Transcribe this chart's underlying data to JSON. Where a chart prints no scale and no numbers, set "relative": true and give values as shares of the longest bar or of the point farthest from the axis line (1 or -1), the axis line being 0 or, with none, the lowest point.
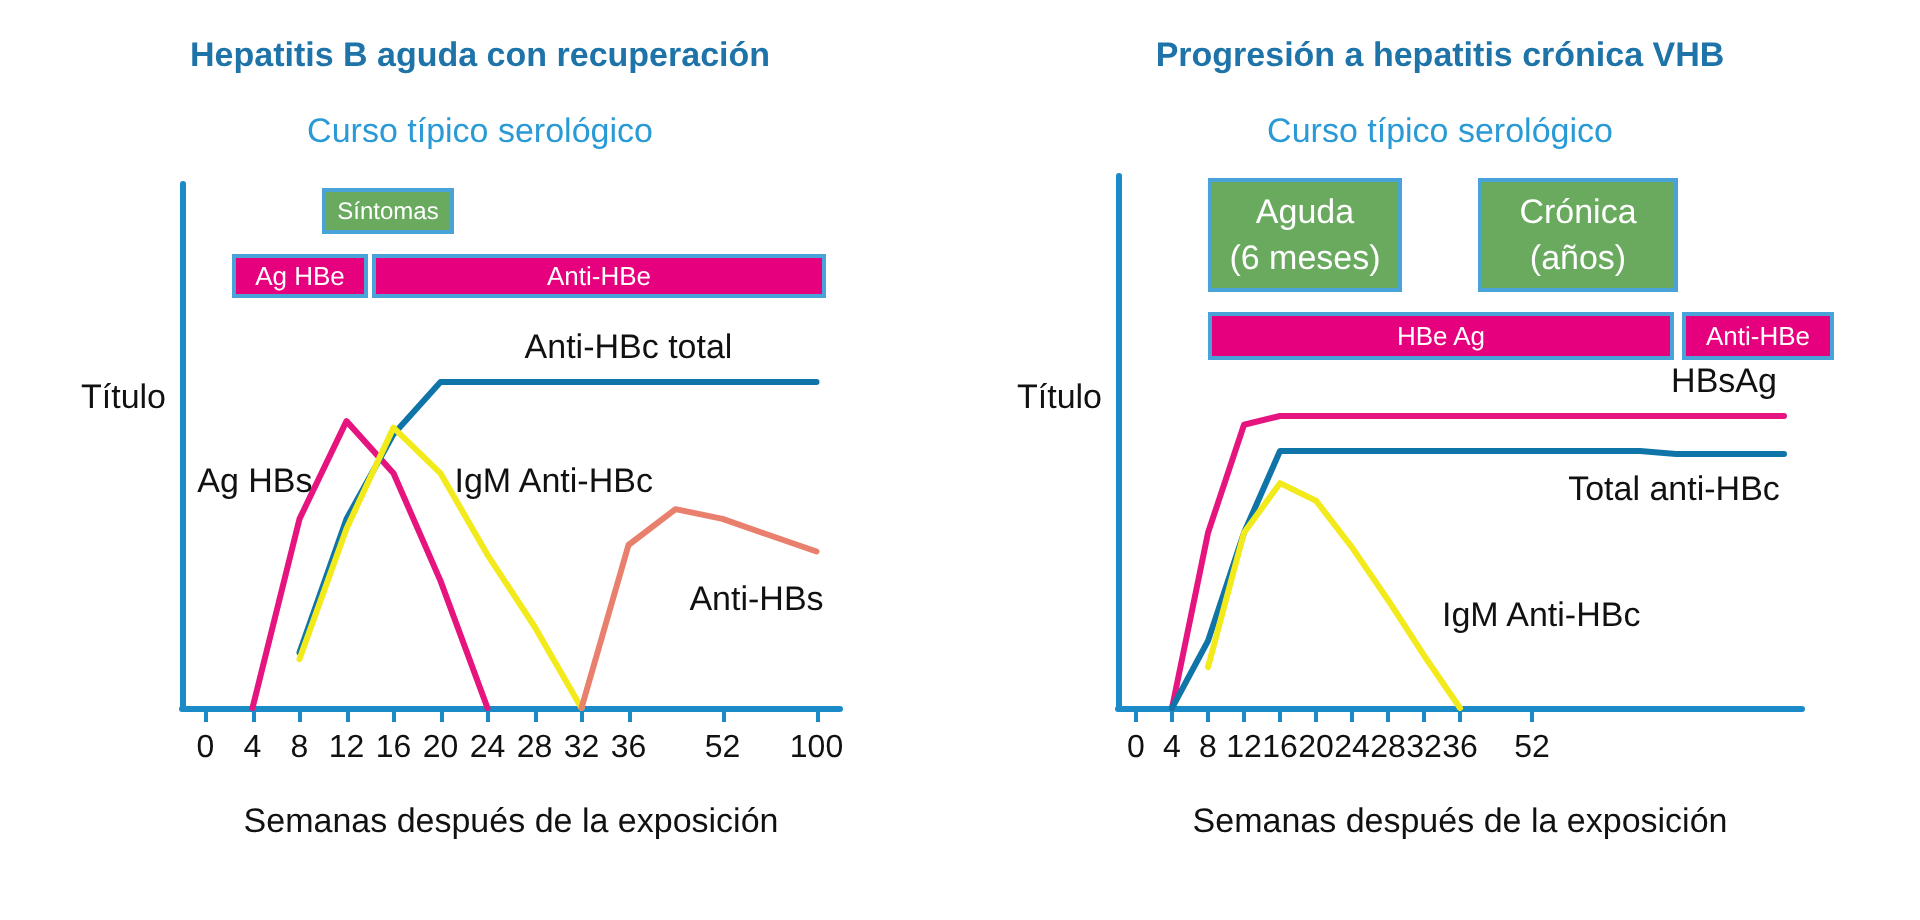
{
  "chart_data": [
    {
      "type": "line",
      "title": "Hepatitis B aguda con recuperación",
      "subtitle": "Curso típico serológico",
      "xlabel": "Semanas después de la exposición",
      "ylabel": "Título",
      "relative": true,
      "grid": false,
      "legend": false,
      "marker": "none",
      "categories": [
        "0",
        "4",
        "8",
        "12",
        "16",
        "20",
        "24",
        "28",
        "32",
        "36",
        null,
        "52",
        null,
        "100"
      ],
      "series": [
        {
          "name": "Ag HBs",
          "color": "#e5147f",
          "values": [
            null,
            0,
            0.58,
            0.88,
            0.72,
            0.39,
            0,
            null,
            null,
            null,
            null,
            null,
            null,
            null
          ]
        },
        {
          "name": "Anti-HBc total",
          "color": "#0f75a8",
          "values": [
            null,
            null,
            0.17,
            0.58,
            0.84,
            1,
            1,
            1,
            1,
            1,
            1,
            1,
            1,
            1
          ]
        },
        {
          "name": "IgM Anti-HBc",
          "color": "#f3ea1c",
          "values": [
            null,
            null,
            0.15,
            0.55,
            0.86,
            0.72,
            0.47,
            0.25,
            0,
            null,
            null,
            null,
            null,
            null
          ]
        },
        {
          "name": "Anti-HBs",
          "color": "#e9806e",
          "values": [
            null,
            null,
            null,
            null,
            null,
            null,
            null,
            null,
            0,
            0.5,
            0.61,
            0.58,
            0.53,
            0.48
          ]
        }
      ],
      "annotations": [
        "Síntomas",
        "Ag HBe",
        "Anti-HBe"
      ]
    },
    {
      "type": "line",
      "title": "Progresión a hepatitis crónica VHB",
      "subtitle": "Curso típico serológico",
      "xlabel": "Semanas después de la exposición",
      "ylabel": "Título",
      "relative": true,
      "grid": false,
      "legend": false,
      "marker": "none",
      "categories": [
        "0",
        "4",
        "8",
        "12",
        "16",
        "20",
        "24",
        "28",
        "32",
        "36",
        null,
        "52",
        null,
        null,
        null,
        null,
        null,
        null,
        null
      ],
      "series": [
        {
          "name": "HBsAg",
          "color": "#e5147f",
          "values": [
            null,
            0,
            0.6,
            0.97,
            1,
            1,
            1,
            1,
            1,
            1,
            1,
            1,
            1,
            1,
            1,
            1,
            1,
            1,
            1
          ]
        },
        {
          "name": "Total anti-HBc",
          "color": "#0f75a8",
          "values": [
            null,
            0,
            0.23,
            0.6,
            0.88,
            0.88,
            0.88,
            0.88,
            0.88,
            0.88,
            0.88,
            0.88,
            0.88,
            0.88,
            0.88,
            0.87,
            0.87,
            0.87,
            0.87
          ]
        },
        {
          "name": "IgM Anti-HBc",
          "color": "#f3ea1c",
          "values": [
            null,
            null,
            0.14,
            0.6,
            0.77,
            0.71,
            0.55,
            0.37,
            0.18,
            0,
            null,
            null,
            null,
            null,
            null,
            null,
            null,
            null,
            null
          ]
        }
      ],
      "annotations": [
        "Aguda\n(6 meses)",
        "Crónica\n(años)",
        "HBe Ag",
        "Anti-HBe"
      ]
    }
  ]
}
